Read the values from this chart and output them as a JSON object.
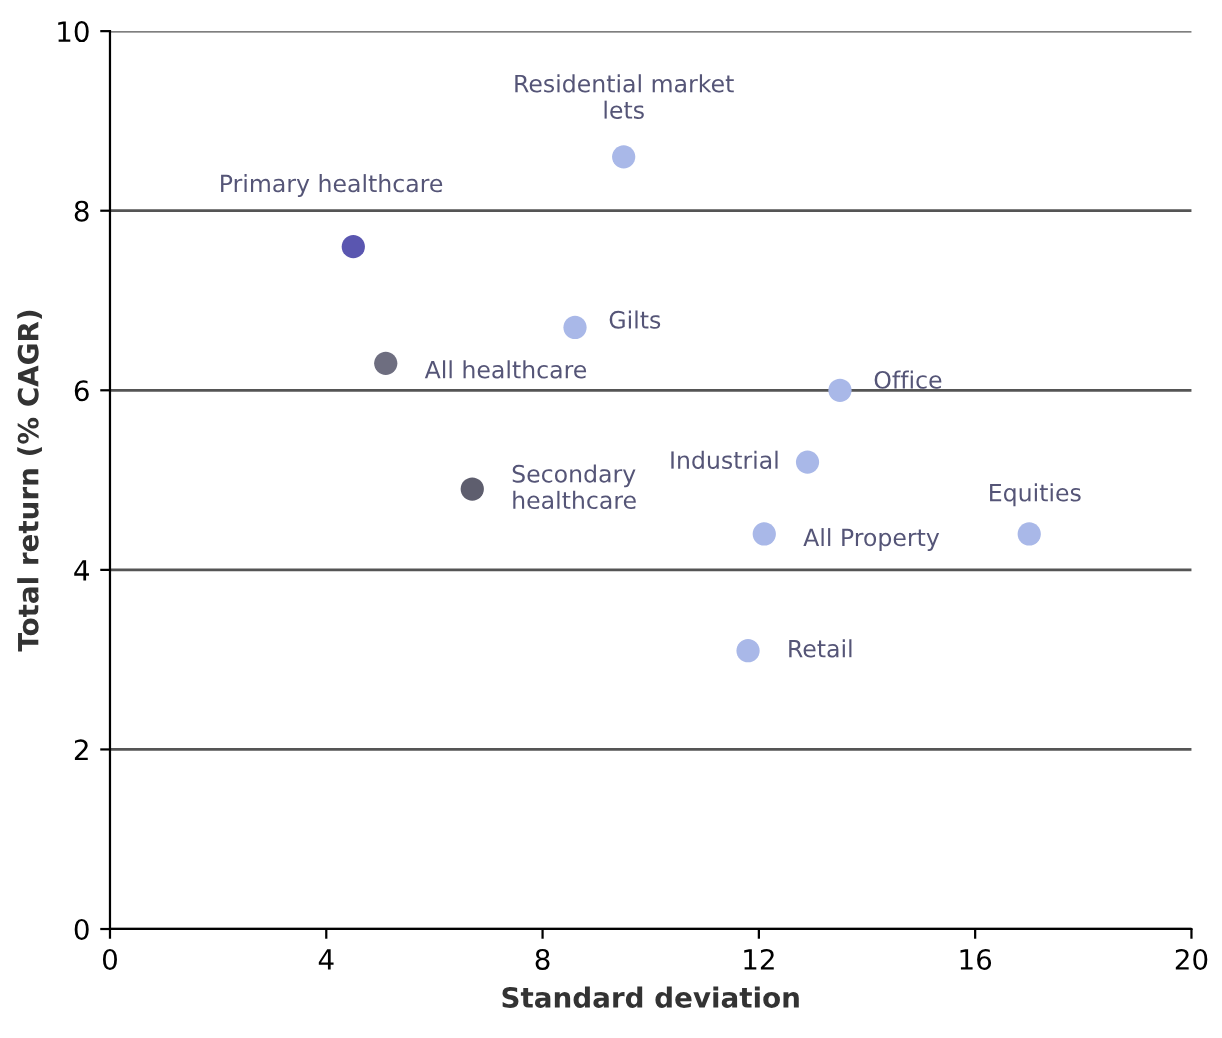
{
  "chart_data": {
    "type": "scatter",
    "xlabel": "Standard deviation",
    "ylabel": "Total return (% CAGR)",
    "xlim": [
      0,
      20
    ],
    "xticks": [
      0,
      4,
      8,
      12,
      16,
      20
    ],
    "ylim": [
      0,
      10
    ],
    "yticks": [
      0,
      2,
      4,
      6,
      8,
      10
    ],
    "grid": "y",
    "marker": "circle",
    "series": [
      {
        "x": [
          9.5,
          4.5,
          8.6,
          5.1,
          13.5,
          12.9,
          6.7,
          12.1,
          17.0,
          11.8
        ],
        "values": [
          8.6,
          7.6,
          6.7,
          6.3,
          6.0,
          5.2,
          4.9,
          4.4,
          4.4,
          3.1
        ],
        "colors": [
          "#a9b8e8",
          "#5a56b0",
          "#a9b8e8",
          "#6e6e80",
          "#a9b8e8",
          "#a9b8e8",
          "#5e5e6e",
          "#a9b8e8",
          "#a9b8e8",
          "#a9b8e8"
        ]
      }
    ],
    "annotations": [
      {
        "text": "Residential market\nlets",
        "x": 9.5,
        "y": 8.6
      },
      {
        "text": "Primary healthcare",
        "x": 4.5,
        "y": 7.6
      },
      {
        "text": "Gilts",
        "x": 8.6,
        "y": 6.7
      },
      {
        "text": "All healthcare",
        "x": 5.1,
        "y": 6.3
      },
      {
        "text": "Office",
        "x": 13.5,
        "y": 6.0
      },
      {
        "text": "Industrial",
        "x": 12.9,
        "y": 5.2
      },
      {
        "text": "Secondary\nhealthcare",
        "x": 6.7,
        "y": 4.9
      },
      {
        "text": "All Property",
        "x": 12.1,
        "y": 4.4
      },
      {
        "text": "Equities",
        "x": 17.0,
        "y": 4.4
      },
      {
        "text": "Retail",
        "x": 11.8,
        "y": 3.1
      }
    ]
  }
}
